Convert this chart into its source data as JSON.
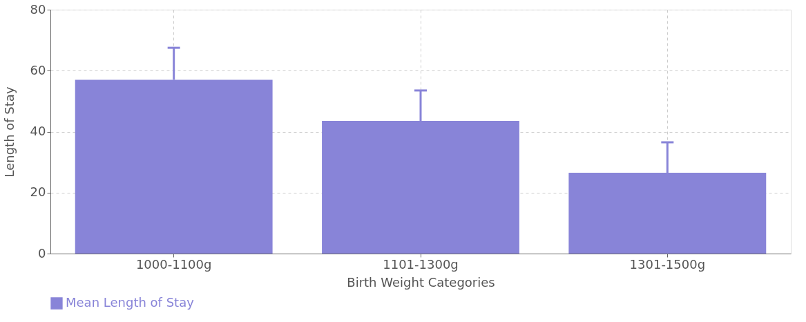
{
  "chart_data": {
    "type": "bar",
    "xlabel": "Birth Weight Categories",
    "ylabel": "Length of Stay",
    "categories": [
      "1000-1100g",
      "1101-1300g",
      "1301-1500g"
    ],
    "series": [
      {
        "name": "Mean Length of Stay",
        "color": "#8884d8",
        "values": [
          57,
          43.5,
          26.5
        ],
        "errors": [
          [
            57,
            67.5
          ],
          [
            43.5,
            53.5
          ],
          [
            26.5,
            36.5
          ]
        ]
      }
    ],
    "ylim": [
      0,
      80
    ],
    "yticks": [
      0,
      20,
      40,
      60,
      80
    ],
    "grid": true,
    "legend": "bottom"
  }
}
